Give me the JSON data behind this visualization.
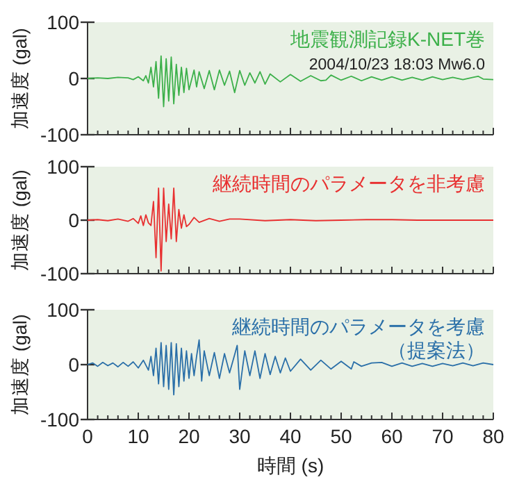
{
  "chart_data": [
    {
      "type": "line",
      "title": "地震観測記録K-NET巻",
      "subtitle": "2004/10/23 18:03 Mw6.0",
      "ylabel": "加速度 (gal)",
      "xlim": [
        0,
        80
      ],
      "ylim": [
        -100,
        100
      ],
      "xticks": [
        0,
        {
          "value": 2,
          "label": null
        },
        {
          "value": 4,
          "label": null
        },
        {
          "value": 6,
          "label": null
        },
        {
          "value": 8,
          "label": null
        },
        10,
        {
          "value": 12,
          "label": null
        },
        {
          "value": 14,
          "label": null
        },
        {
          "value": 16,
          "label": null
        },
        {
          "value": 18,
          "label": null
        },
        20,
        {
          "value": 22,
          "label": null
        },
        {
          "value": 24,
          "label": null
        },
        {
          "value": 26,
          "label": null
        },
        {
          "value": 28,
          "label": null
        },
        30,
        {
          "value": 32,
          "label": null
        },
        {
          "value": 34,
          "label": null
        },
        {
          "value": 36,
          "label": null
        },
        {
          "value": 38,
          "label": null
        },
        40,
        {
          "value": 42,
          "label": null
        },
        {
          "value": 44,
          "label": null
        },
        {
          "value": 46,
          "label": null
        },
        {
          "value": 48,
          "label": null
        },
        50,
        {
          "value": 52,
          "label": null
        },
        {
          "value": 54,
          "label": null
        },
        {
          "value": 56,
          "label": null
        },
        {
          "value": 58,
          "label": null
        },
        60,
        {
          "value": 62,
          "label": null
        },
        {
          "value": 64,
          "label": null
        },
        {
          "value": 66,
          "label": null
        },
        {
          "value": 68,
          "label": null
        },
        70,
        {
          "value": 72,
          "label": null
        },
        {
          "value": 74,
          "label": null
        },
        {
          "value": 76,
          "label": null
        },
        {
          "value": 78,
          "label": null
        },
        80
      ],
      "yticks": [
        -100,
        0,
        100
      ],
      "tick_labels": "y",
      "series": [
        {
          "color": "#3cb04a",
          "x": [
            0,
            2,
            4,
            6,
            8,
            9,
            10,
            11,
            11.5,
            12,
            12.5,
            13,
            13.5,
            14,
            14.5,
            15,
            15.5,
            16,
            16.5,
            17,
            17.5,
            18,
            18.5,
            19,
            19.5,
            20,
            21,
            21.5,
            22,
            23,
            24,
            25,
            26,
            27,
            28,
            29,
            30,
            31,
            32,
            33,
            34,
            35,
            36,
            38,
            40,
            42,
            44,
            46,
            47,
            48,
            50,
            52,
            54,
            56,
            58,
            60,
            62,
            64,
            66,
            68,
            70,
            72,
            74,
            76,
            77,
            78,
            80
          ],
          "values": [
            0,
            1,
            0,
            2,
            1,
            -2,
            3,
            -4,
            5,
            -8,
            20,
            -15,
            30,
            -35,
            40,
            -50,
            35,
            -40,
            38,
            -45,
            25,
            -30,
            20,
            -25,
            18,
            -20,
            15,
            -15,
            12,
            -18,
            14,
            -20,
            15,
            -12,
            13,
            -25,
            14,
            -12,
            10,
            -8,
            12,
            -10,
            8,
            -6,
            7,
            -5,
            5,
            -4,
            -3,
            6,
            -3,
            4,
            -4,
            3,
            -3,
            3,
            -3,
            2,
            -3,
            3,
            -2,
            2,
            -2,
            2,
            4,
            -1,
            -2
          ]
        }
      ]
    },
    {
      "type": "line",
      "title": "継続時間のパラメータを非考慮",
      "ylabel": "加速度 (gal)",
      "xlim": [
        0,
        80
      ],
      "ylim": [
        -100,
        100
      ],
      "xticks": [
        0,
        {
          "value": 2,
          "label": null
        },
        {
          "value": 4,
          "label": null
        },
        {
          "value": 6,
          "label": null
        },
        {
          "value": 8,
          "label": null
        },
        10,
        {
          "value": 12,
          "label": null
        },
        {
          "value": 14,
          "label": null
        },
        {
          "value": 16,
          "label": null
        },
        {
          "value": 18,
          "label": null
        },
        20,
        {
          "value": 22,
          "label": null
        },
        {
          "value": 24,
          "label": null
        },
        {
          "value": 26,
          "label": null
        },
        {
          "value": 28,
          "label": null
        },
        30,
        {
          "value": 32,
          "label": null
        },
        {
          "value": 34,
          "label": null
        },
        {
          "value": 36,
          "label": null
        },
        {
          "value": 38,
          "label": null
        },
        40,
        {
          "value": 42,
          "label": null
        },
        {
          "value": 44,
          "label": null
        },
        {
          "value": 46,
          "label": null
        },
        {
          "value": 48,
          "label": null
        },
        50,
        {
          "value": 52,
          "label": null
        },
        {
          "value": 54,
          "label": null
        },
        {
          "value": 56,
          "label": null
        },
        {
          "value": 58,
          "label": null
        },
        60,
        {
          "value": 62,
          "label": null
        },
        {
          "value": 64,
          "label": null
        },
        {
          "value": 66,
          "label": null
        },
        {
          "value": 68,
          "label": null
        },
        70,
        {
          "value": 72,
          "label": null
        },
        {
          "value": 74,
          "label": null
        },
        {
          "value": 76,
          "label": null
        },
        {
          "value": 78,
          "label": null
        },
        80
      ],
      "yticks": [
        -100,
        0,
        100
      ],
      "tick_labels": "y",
      "series": [
        {
          "color": "#e83030",
          "x": [
            0,
            2,
            4,
            6,
            8,
            9,
            10,
            10.5,
            11,
            11.5,
            12,
            12.5,
            13,
            13.5,
            14,
            14.5,
            15,
            15.5,
            16,
            16.5,
            17,
            17.5,
            18,
            18.5,
            19,
            19.5,
            20,
            21,
            22,
            24,
            26,
            28,
            30,
            35,
            40,
            45,
            50,
            55,
            60,
            65,
            70,
            75,
            80
          ],
          "values": [
            0,
            1,
            -1,
            2,
            -2,
            3,
            -6,
            8,
            -10,
            10,
            -5,
            -10,
            35,
            -70,
            60,
            -95,
            60,
            -40,
            30,
            -35,
            60,
            -40,
            20,
            -15,
            10,
            -12,
            -8,
            5,
            -4,
            3,
            -2,
            2,
            2,
            -1,
            1,
            -1,
            0,
            1,
            1,
            0,
            0,
            0,
            0
          ]
        }
      ]
    },
    {
      "type": "line",
      "title": "継続時間のパラメータを考慮",
      "subtitle": "（提案法）",
      "xlabel": "時間 (s)",
      "ylabel": "加速度 (gal)",
      "xlim": [
        0,
        80
      ],
      "ylim": [
        -100,
        100
      ],
      "xticks": [
        0,
        {
          "value": 2,
          "label": null
        },
        {
          "value": 4,
          "label": null
        },
        {
          "value": 6,
          "label": null
        },
        {
          "value": 8,
          "label": null
        },
        10,
        {
          "value": 12,
          "label": null
        },
        {
          "value": 14,
          "label": null
        },
        {
          "value": 16,
          "label": null
        },
        {
          "value": 18,
          "label": null
        },
        20,
        {
          "value": 22,
          "label": null
        },
        {
          "value": 24,
          "label": null
        },
        {
          "value": 26,
          "label": null
        },
        {
          "value": 28,
          "label": null
        },
        30,
        {
          "value": 32,
          "label": null
        },
        {
          "value": 34,
          "label": null
        },
        {
          "value": 36,
          "label": null
        },
        {
          "value": 38,
          "label": null
        },
        40,
        {
          "value": 42,
          "label": null
        },
        {
          "value": 44,
          "label": null
        },
        {
          "value": 46,
          "label": null
        },
        {
          "value": 48,
          "label": null
        },
        50,
        {
          "value": 52,
          "label": null
        },
        {
          "value": 54,
          "label": null
        },
        {
          "value": 56,
          "label": null
        },
        {
          "value": 58,
          "label": null
        },
        60,
        {
          "value": 62,
          "label": null
        },
        {
          "value": 64,
          "label": null
        },
        {
          "value": 66,
          "label": null
        },
        {
          "value": 68,
          "label": null
        },
        70,
        {
          "value": 72,
          "label": null
        },
        {
          "value": 74,
          "label": null
        },
        {
          "value": 76,
          "label": null
        },
        {
          "value": 78,
          "label": null
        },
        80
      ],
      "yticks": [
        -100,
        0,
        100
      ],
      "series": [
        {
          "color": "#2a6fa8",
          "x": [
            0,
            1,
            2,
            3,
            4,
            5,
            6,
            7,
            8,
            9,
            10,
            11,
            12,
            12.5,
            13,
            13.5,
            14,
            14.5,
            15,
            15.5,
            16,
            16.5,
            17,
            17.5,
            18,
            18.5,
            19,
            19.5,
            20,
            20.5,
            21,
            21.5,
            22,
            22.5,
            23,
            24,
            25,
            26,
            27,
            28,
            29,
            29.5,
            30,
            31,
            32,
            33,
            34,
            35,
            36,
            37,
            38,
            39,
            40,
            42,
            44,
            46,
            48,
            50,
            52,
            52.5,
            54,
            56,
            58,
            60,
            62,
            64,
            66,
            68,
            70,
            72,
            74,
            76,
            78,
            80
          ],
          "values": [
            0,
            3,
            -3,
            4,
            -2,
            3,
            -4,
            4,
            -3,
            5,
            -6,
            8,
            -10,
            15,
            -20,
            30,
            -35,
            40,
            -40,
            35,
            -45,
            40,
            -55,
            38,
            -40,
            30,
            -30,
            25,
            -25,
            20,
            -20,
            15,
            45,
            -30,
            25,
            -20,
            22,
            -25,
            20,
            -15,
            18,
            35,
            -45,
            25,
            -20,
            25,
            -25,
            20,
            -18,
            15,
            -15,
            12,
            -12,
            10,
            -10,
            8,
            -8,
            6,
            -8,
            5,
            -3,
            3,
            4,
            -3,
            3,
            -3,
            2,
            -3,
            2,
            -2,
            3,
            -2,
            3,
            0
          ]
        }
      ]
    }
  ]
}
